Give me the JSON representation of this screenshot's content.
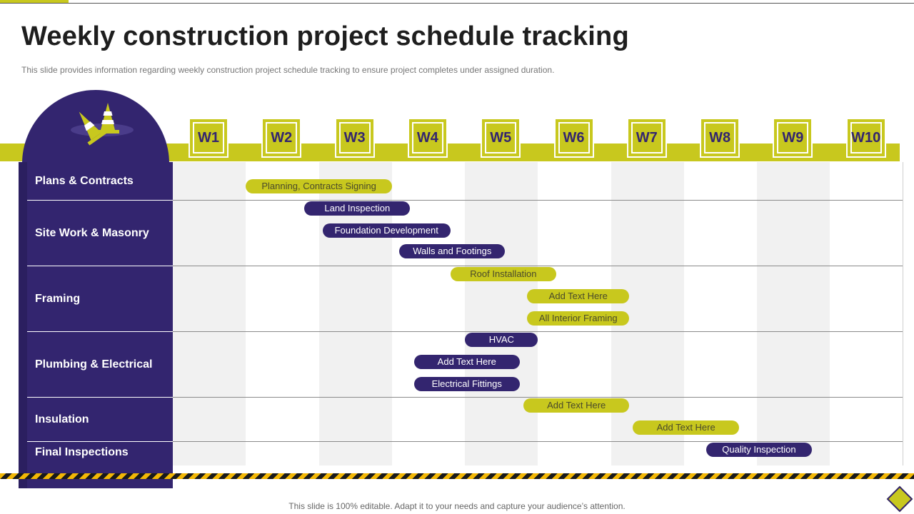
{
  "slide": {
    "title": "Weekly construction project schedule tracking",
    "subtitle": "This slide provides information regarding weekly construction project schedule tracking to ensure project completes under assigned duration.",
    "footer": "This slide is 100% editable. Adapt it to your needs and capture your audience’s attention."
  },
  "colors": {
    "accent_yellow": "#c8c81e",
    "brand_purple": "#33256f",
    "hazard_yellow": "#f2b705",
    "hazard_black": "#1a1a1a"
  },
  "icons": {
    "badge": "traffic-cones-icon",
    "corner": "diamond-icon"
  },
  "weeks": [
    "W1",
    "W2",
    "W3",
    "W4",
    "W5",
    "W6",
    "W7",
    "W8",
    "W9",
    "W10"
  ],
  "categories": [
    {
      "label": "Plans & Contracts"
    },
    {
      "label": "Site Work & Masonry"
    },
    {
      "label": "Framing"
    },
    {
      "label": "Plumbing & Electrical"
    },
    {
      "label": "Insulation"
    },
    {
      "label": "Final Inspections"
    }
  ],
  "tasks": [
    {
      "label": "Planning, Contracts Signing",
      "category": "Plans & Contracts",
      "color": "yellow",
      "start_week": 2.0,
      "end_week": 4.0
    },
    {
      "label": "Land Inspection",
      "category": "Site Work & Masonry",
      "color": "purple",
      "start_week": 2.8,
      "end_week": 4.25
    },
    {
      "label": "Foundation Development",
      "category": "Site Work & Masonry",
      "color": "purple",
      "start_week": 3.05,
      "end_week": 4.8
    },
    {
      "label": "Walls and Footings",
      "category": "Site Work & Masonry",
      "color": "purple",
      "start_week": 4.1,
      "end_week": 5.55
    },
    {
      "label": "Roof Installation",
      "category": "Framing",
      "color": "yellow",
      "start_week": 4.8,
      "end_week": 6.25
    },
    {
      "label": "Add Text Here",
      "category": "Framing",
      "color": "yellow",
      "start_week": 5.85,
      "end_week": 7.25
    },
    {
      "label": "All Interior Framing",
      "category": "Framing",
      "color": "yellow",
      "start_week": 5.85,
      "end_week": 7.25
    },
    {
      "label": "HVAC",
      "category": "Plumbing & Electrical",
      "color": "purple",
      "start_week": 5.0,
      "end_week": 6.0
    },
    {
      "label": "Add Text Here",
      "category": "Plumbing & Electrical",
      "color": "purple",
      "start_week": 4.3,
      "end_week": 5.75
    },
    {
      "label": "Electrical Fittings",
      "category": "Plumbing & Electrical",
      "color": "purple",
      "start_week": 4.3,
      "end_week": 5.75
    },
    {
      "label": "Add Text Here",
      "category": "Insulation",
      "color": "yellow",
      "start_week": 5.8,
      "end_week": 7.25
    },
    {
      "label": "Add Text Here",
      "category": "Insulation",
      "color": "yellow",
      "start_week": 7.3,
      "end_week": 8.75
    },
    {
      "label": "Quality Inspection",
      "category": "Final Inspections",
      "color": "purple",
      "start_week": 8.3,
      "end_week": 9.75
    }
  ]
}
